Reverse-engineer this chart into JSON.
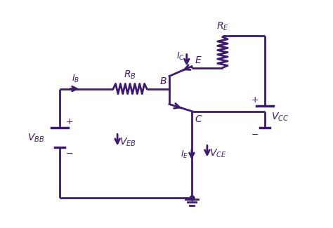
{
  "color": "#3d1a6e",
  "lw": 2.0,
  "bg": "#ffffff",
  "figsize": [
    4.74,
    3.25
  ],
  "dpi": 100,
  "xL": 0.7,
  "xVBB": 0.7,
  "xRB": 3.2,
  "xB": 4.6,
  "xE": 5.4,
  "xRE": 6.5,
  "xR": 8.0,
  "yTop": 6.8,
  "yEtip": 5.7,
  "yBase": 4.9,
  "yCtip": 4.1,
  "yBot": 1.0,
  "yVBBplus": 3.5,
  "yVBBminus": 2.8,
  "yVCCplus": 4.3,
  "yVCCminus": 3.5,
  "REcy": 6.2,
  "blt": 5.35,
  "blb": 4.35
}
